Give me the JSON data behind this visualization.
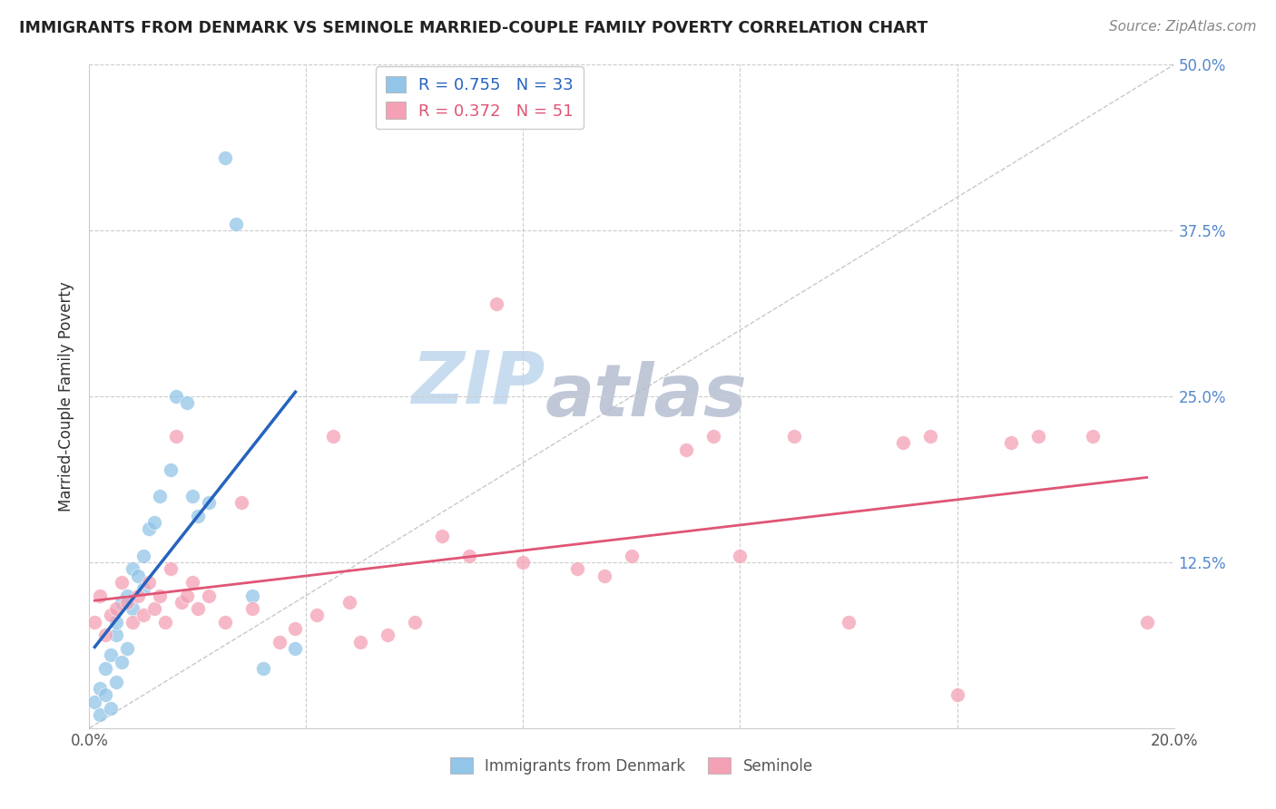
{
  "title": "IMMIGRANTS FROM DENMARK VS SEMINOLE MARRIED-COUPLE FAMILY POVERTY CORRELATION CHART",
  "source": "Source: ZipAtlas.com",
  "ylabel": "Married-Couple Family Poverty",
  "xlim": [
    0.0,
    0.2
  ],
  "ylim": [
    0.0,
    0.5
  ],
  "denmark_R": 0.755,
  "denmark_N": 33,
  "seminole_R": 0.372,
  "seminole_N": 51,
  "denmark_color": "#92C5E8",
  "seminole_color": "#F4A0B5",
  "denmark_line_color": "#2563BE",
  "seminole_line_color": "#E05575",
  "diagonal_color": "#BBBBBB",
  "watermark_zip_color": "#C8DCF0",
  "watermark_atlas_color": "#C0C8D8",
  "background_color": "#FFFFFF",
  "grid_color": "#CCCCCC",
  "denmark_scatter_x": [
    0.001,
    0.002,
    0.002,
    0.003,
    0.003,
    0.004,
    0.004,
    0.005,
    0.005,
    0.005,
    0.006,
    0.006,
    0.007,
    0.007,
    0.008,
    0.008,
    0.009,
    0.01,
    0.01,
    0.011,
    0.012,
    0.013,
    0.015,
    0.016,
    0.018,
    0.019,
    0.02,
    0.022,
    0.025,
    0.027,
    0.03,
    0.032,
    0.038
  ],
  "denmark_scatter_y": [
    0.02,
    0.01,
    0.03,
    0.025,
    0.045,
    0.015,
    0.055,
    0.035,
    0.07,
    0.08,
    0.05,
    0.095,
    0.06,
    0.1,
    0.09,
    0.12,
    0.115,
    0.105,
    0.13,
    0.15,
    0.155,
    0.175,
    0.195,
    0.25,
    0.245,
    0.175,
    0.16,
    0.17,
    0.43,
    0.38,
    0.1,
    0.045,
    0.06
  ],
  "seminole_scatter_x": [
    0.001,
    0.002,
    0.003,
    0.004,
    0.005,
    0.006,
    0.007,
    0.008,
    0.009,
    0.01,
    0.011,
    0.012,
    0.013,
    0.014,
    0.015,
    0.016,
    0.017,
    0.018,
    0.019,
    0.02,
    0.022,
    0.025,
    0.028,
    0.03,
    0.035,
    0.038,
    0.042,
    0.045,
    0.048,
    0.05,
    0.055,
    0.06,
    0.065,
    0.07,
    0.075,
    0.08,
    0.09,
    0.095,
    0.1,
    0.11,
    0.115,
    0.12,
    0.13,
    0.14,
    0.15,
    0.155,
    0.16,
    0.17,
    0.175,
    0.185,
    0.195
  ],
  "seminole_scatter_y": [
    0.08,
    0.1,
    0.07,
    0.085,
    0.09,
    0.11,
    0.095,
    0.08,
    0.1,
    0.085,
    0.11,
    0.09,
    0.1,
    0.08,
    0.12,
    0.22,
    0.095,
    0.1,
    0.11,
    0.09,
    0.1,
    0.08,
    0.17,
    0.09,
    0.065,
    0.075,
    0.085,
    0.22,
    0.095,
    0.065,
    0.07,
    0.08,
    0.145,
    0.13,
    0.32,
    0.125,
    0.12,
    0.115,
    0.13,
    0.21,
    0.22,
    0.13,
    0.22,
    0.08,
    0.215,
    0.22,
    0.025,
    0.215,
    0.22,
    0.22,
    0.08
  ]
}
